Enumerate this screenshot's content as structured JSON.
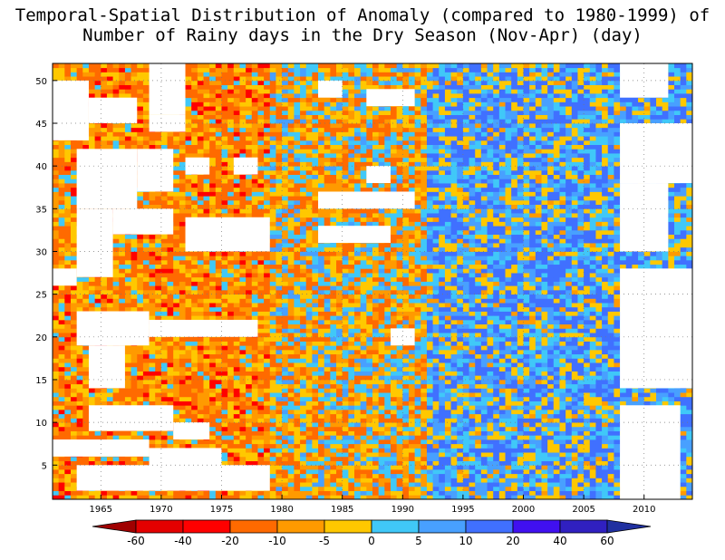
{
  "title": {
    "line1": "Temporal-Spatial Distribution of Anomaly (compared to 1980-1999) of",
    "line2": "Number of Rainy days in the Dry Season (Nov-Apr) (day)"
  },
  "chart_data": {
    "type": "heatmap",
    "title": "Temporal-Spatial Distribution of Anomaly (compared to 1980-1999) of Number of Rainy days in the Dry Season (Nov-Apr) (day)",
    "xlabel": "",
    "ylabel": "",
    "xlim": [
      1961,
      2014
    ],
    "ylim": [
      1,
      52
    ],
    "x_ticks": [
      1965,
      1970,
      1975,
      1980,
      1985,
      1990,
      1995,
      2000,
      2005,
      2010
    ],
    "y_ticks": [
      5,
      10,
      15,
      20,
      25,
      30,
      35,
      40,
      45,
      50
    ],
    "grid": true,
    "colorbar": {
      "levels": [
        -60,
        -40,
        -20,
        -10,
        -5,
        0,
        5,
        10,
        20,
        40,
        60
      ],
      "labels": [
        "-60",
        "-40",
        "-20",
        "-10",
        "-5",
        "0",
        "5",
        "10",
        "20",
        "40",
        "60"
      ],
      "colors": [
        "#a00000",
        "#e40000",
        "#ff0000",
        "#ff6a00",
        "#ff9a00",
        "#ffc800",
        "#40c8f8",
        "#48a0ff",
        "#4070ff",
        "#4010f0",
        "#3020c0",
        "#2030a0"
      ]
    },
    "era_means": [
      {
        "from": 1961,
        "to": 1979,
        "mean": -10
      },
      {
        "from": 1979,
        "to": 1992,
        "mean": -4
      },
      {
        "from": 1992,
        "to": 2014,
        "mean": 6
      }
    ],
    "missing_regions": [
      {
        "x": [
          1961,
          1964
        ],
        "y": [
          43,
          50
        ]
      },
      {
        "x": [
          1964,
          1968
        ],
        "y": [
          45,
          48
        ]
      },
      {
        "x": [
          1969,
          1972
        ],
        "y": [
          44,
          46
        ]
      },
      {
        "x": [
          1963,
          1968
        ],
        "y": [
          35,
          42
        ]
      },
      {
        "x": [
          1968,
          1971
        ],
        "y": [
          37,
          42
        ]
      },
      {
        "x": [
          1972,
          1974
        ],
        "y": [
          39,
          41
        ]
      },
      {
        "x": [
          1976,
          1978
        ],
        "y": [
          39,
          41
        ]
      },
      {
        "x": [
          1963,
          1966
        ],
        "y": [
          27,
          35
        ]
      },
      {
        "x": [
          1966,
          1971
        ],
        "y": [
          32,
          35
        ]
      },
      {
        "x": [
          1972,
          1979
        ],
        "y": [
          30,
          34
        ]
      },
      {
        "x": [
          1961,
          1963
        ],
        "y": [
          26,
          28
        ]
      },
      {
        "x": [
          1963,
          1969
        ],
        "y": [
          19,
          23
        ]
      },
      {
        "x": [
          1969,
          1978
        ],
        "y": [
          20,
          22
        ]
      },
      {
        "x": [
          1964,
          1967
        ],
        "y": [
          14,
          19
        ]
      },
      {
        "x": [
          1964,
          1971
        ],
        "y": [
          9,
          12
        ]
      },
      {
        "x": [
          1971,
          1974
        ],
        "y": [
          8,
          10
        ]
      },
      {
        "x": [
          1961,
          1969
        ],
        "y": [
          6,
          8
        ]
      },
      {
        "x": [
          1969,
          1975
        ],
        "y": [
          4,
          7
        ]
      },
      {
        "x": [
          1963,
          1979
        ],
        "y": [
          2,
          5
        ]
      },
      {
        "x": [
          1983,
          1985
        ],
        "y": [
          48,
          50
        ]
      },
      {
        "x": [
          1987,
          1991
        ],
        "y": [
          47,
          49
        ]
      },
      {
        "x": [
          1983,
          1991
        ],
        "y": [
          35,
          37
        ]
      },
      {
        "x": [
          1983,
          1989
        ],
        "y": [
          31,
          33
        ]
      },
      {
        "x": [
          1987,
          1989
        ],
        "y": [
          38,
          40
        ]
      },
      {
        "x": [
          1989,
          1991
        ],
        "y": [
          19,
          21
        ]
      },
      {
        "x": [
          1969,
          1972
        ],
        "y": [
          46,
          52
        ]
      },
      {
        "x": [
          2008,
          2012
        ],
        "y": [
          48,
          52
        ]
      },
      {
        "x": [
          2008,
          2014
        ],
        "y": [
          38,
          45
        ]
      },
      {
        "x": [
          2008,
          2012
        ],
        "y": [
          30,
          38
        ]
      },
      {
        "x": [
          2008,
          2014
        ],
        "y": [
          14,
          28
        ]
      },
      {
        "x": [
          2008,
          2013
        ],
        "y": [
          1,
          12
        ]
      }
    ]
  }
}
